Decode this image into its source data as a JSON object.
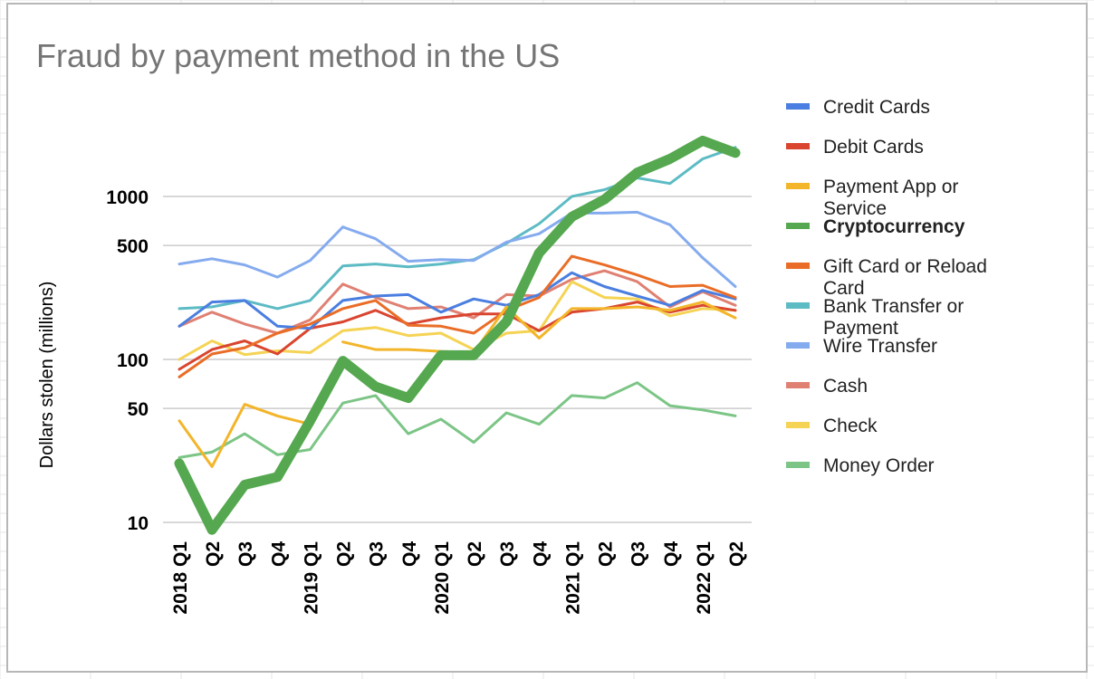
{
  "chart_data": {
    "type": "line",
    "title": "Fraud by payment method in the US",
    "xlabel": "",
    "ylabel": "Dollars stolen (millions)",
    "yscale": "log",
    "ylim": [
      10,
      2500
    ],
    "yticks": [
      10,
      50,
      100,
      500,
      1000
    ],
    "grid": true,
    "legend_position": "right",
    "x": [
      "2018 Q1",
      "Q2",
      "Q3",
      "Q4",
      "2019 Q1",
      "Q2",
      "Q3",
      "Q4",
      "2020 Q1",
      "Q2",
      "Q3",
      "Q4",
      "2021 Q1",
      "Q2",
      "Q3",
      "Q4",
      "2022 Q1",
      "Q2"
    ],
    "series": [
      {
        "name": "Credit Cards",
        "color": "#4a7ee0",
        "values": [
          160,
          225,
          230,
          160,
          155,
          230,
          245,
          250,
          195,
          235,
          215,
          250,
          340,
          280,
          245,
          215,
          265,
          235
        ],
        "bold": false
      },
      {
        "name": "Debit Cards",
        "color": "#d9452f",
        "values": [
          87,
          115,
          130,
          108,
          155,
          170,
          200,
          165,
          180,
          190,
          190,
          150,
          195,
          205,
          225,
          195,
          215,
          200
        ],
        "bold": false
      },
      {
        "name": "Payment App or Service",
        "color": "#f3b52a",
        "values": [
          42,
          22,
          53,
          45,
          40,
          null,
          null,
          null,
          null,
          null,
          null,
          null,
          null,
          null,
          null,
          null,
          null,
          null
        ],
        "bold": false
      },
      {
        "name": "Cryptocurrency",
        "color": "#55a84f",
        "values": [
          23,
          9,
          17,
          19,
          42,
          98,
          68,
          58,
          106,
          106,
          170,
          450,
          750,
          960,
          1400,
          1700,
          2200,
          1850
        ],
        "bold": true
      },
      {
        "name": "Gift Card or Reload Card",
        "color": "#ea6d27",
        "values": [
          78,
          108,
          118,
          145,
          165,
          205,
          230,
          162,
          160,
          145,
          200,
          240,
          430,
          380,
          330,
          280,
          285,
          240
        ],
        "bold": false
      },
      {
        "name": "Bank Transfer or Payment",
        "color": "#5dbbc4",
        "values": [
          205,
          210,
          230,
          205,
          230,
          375,
          385,
          370,
          385,
          410,
          515,
          680,
          1000,
          1100,
          1300,
          1200,
          1700,
          2000
        ],
        "bold": false
      },
      {
        "name": "Wire Transfer",
        "color": "#85abef",
        "values": [
          385,
          415,
          380,
          320,
          405,
          650,
          550,
          400,
          410,
          405,
          525,
          590,
          790,
          790,
          800,
          670,
          420,
          280
        ],
        "bold": false
      },
      {
        "name": "Cash",
        "color": "#e08073",
        "values": [
          160,
          195,
          165,
          145,
          175,
          290,
          240,
          205,
          210,
          180,
          250,
          245,
          310,
          350,
          300,
          210,
          260,
          215
        ],
        "bold": false
      },
      {
        "name": "Check",
        "color": "#f5d354",
        "values": [
          100,
          130,
          107,
          113,
          110,
          150,
          157,
          140,
          145,
          115,
          145,
          150,
          300,
          240,
          235,
          185,
          205,
          200
        ],
        "bold": false
      },
      {
        "name": "Money Order",
        "color": "#7cc586",
        "values": [
          25,
          27,
          35,
          26,
          28,
          54,
          60,
          35,
          43,
          31,
          47,
          40,
          60,
          58,
          72,
          52,
          49,
          45
        ],
        "bold": false
      }
    ],
    "extra_lines": [
      {
        "label": "Payment App or Service (continued)",
        "color": "#f3b52a",
        "values": [
          null,
          null,
          null,
          null,
          null,
          128,
          115,
          115,
          112,
          110,
          210,
          135,
          205,
          205,
          210,
          200,
          225,
          180
        ]
      }
    ]
  }
}
